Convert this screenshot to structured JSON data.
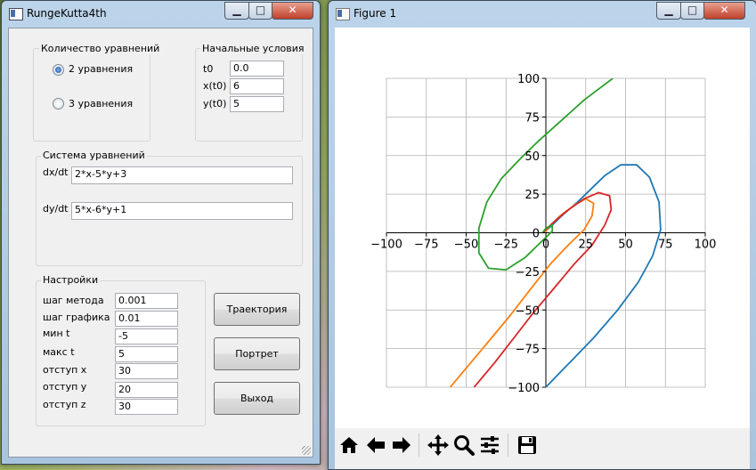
{
  "left_window": {
    "title": "RungeKutta4th",
    "eq_count_group": {
      "label": "Количество уравнений",
      "options": [
        "2 уравнения",
        "3 уравнения"
      ],
      "selected": 0
    },
    "initial_group": {
      "label": "Начальные условия",
      "fields": [
        {
          "label": "t0",
          "value": "0.0"
        },
        {
          "label": "x(t0)",
          "value": "6"
        },
        {
          "label": "y(t0)",
          "value": "5"
        }
      ]
    },
    "system_group": {
      "label": "Система уравнений",
      "equations": [
        {
          "label": "dx/dt",
          "value": "2*x-5*y+3"
        },
        {
          "label": "dy/dt",
          "value": "5*x-6*y+1"
        }
      ]
    },
    "settings_group": {
      "label": "Настройки",
      "fields": [
        {
          "label": "шаг метода",
          "value": "0.001"
        },
        {
          "label": "шаг графика",
          "value": "0.01"
        },
        {
          "label": "мин t",
          "value": "-5"
        },
        {
          "label": "макс t",
          "value": "5"
        },
        {
          "label": "отступ x",
          "value": "30"
        },
        {
          "label": "отступ y",
          "value": "20"
        },
        {
          "label": "отступ z",
          "value": "30"
        }
      ]
    },
    "buttons": {
      "trajectory": "Траектория",
      "portrait": "Портрет",
      "exit": "Выход"
    }
  },
  "right_window": {
    "title": "Figure 1",
    "toolbar_icons": [
      "home-icon",
      "back-arrow-icon",
      "forward-arrow-icon",
      "pan-icon",
      "zoom-icon",
      "subplots-icon",
      "save-icon"
    ]
  },
  "chart_data": {
    "type": "line",
    "title": "",
    "xlabel": "",
    "ylabel": "",
    "xlim": [
      -100,
      100
    ],
    "ylim": [
      -100,
      100
    ],
    "x_ticks": [
      -100,
      -75,
      -50,
      -25,
      0,
      25,
      50,
      75,
      100
    ],
    "y_ticks": [
      -100,
      -75,
      -50,
      -25,
      0,
      25,
      50,
      75,
      100
    ],
    "x_tick_labels": [
      "−100",
      "−75",
      "−50",
      "−25",
      "0",
      "25",
      "50",
      "75",
      "100"
    ],
    "y_tick_labels": [
      "−100",
      "−75",
      "−50",
      "−25",
      "0",
      "25",
      "50",
      "75",
      "100"
    ],
    "grid": true,
    "axes_through_origin": true,
    "series": [
      {
        "color": "#1f77b4",
        "points": [
          [
            0,
            -100
          ],
          [
            15,
            -84
          ],
          [
            30,
            -68
          ],
          [
            45,
            -50
          ],
          [
            58,
            -32
          ],
          [
            67,
            -15
          ],
          [
            72,
            2
          ],
          [
            71,
            20
          ],
          [
            65,
            36
          ],
          [
            57,
            44
          ],
          [
            47,
            44
          ],
          [
            37,
            37
          ],
          [
            29,
            29
          ],
          [
            20,
            20
          ],
          [
            10,
            11
          ],
          [
            3,
            4
          ],
          [
            -2,
            0
          ]
        ]
      },
      {
        "color": "#ff7f0e",
        "points": [
          [
            -60,
            -100
          ],
          [
            -47,
            -84
          ],
          [
            -34,
            -68
          ],
          [
            -22,
            -53
          ],
          [
            -10,
            -37
          ],
          [
            3,
            -20
          ],
          [
            14,
            -8
          ],
          [
            24,
            2
          ],
          [
            29,
            11
          ],
          [
            30,
            19
          ],
          [
            25,
            22
          ],
          [
            18,
            18
          ],
          [
            9,
            11
          ],
          [
            3,
            5
          ],
          [
            -1,
            0
          ]
        ]
      },
      {
        "color": "#d62728",
        "points": [
          [
            -45,
            -100
          ],
          [
            -32,
            -84
          ],
          [
            -20,
            -68
          ],
          [
            -8,
            -52
          ],
          [
            5,
            -36
          ],
          [
            18,
            -20
          ],
          [
            29,
            -8
          ],
          [
            37,
            5
          ],
          [
            41,
            15
          ],
          [
            40,
            24
          ],
          [
            33,
            26
          ],
          [
            24,
            22
          ],
          [
            13,
            14
          ],
          [
            5,
            7
          ],
          [
            0,
            2
          ],
          [
            -2,
            0
          ]
        ]
      },
      {
        "color": "#2ca02c",
        "points": [
          [
            42,
            100
          ],
          [
            24,
            86
          ],
          [
            9,
            72
          ],
          [
            -5,
            59
          ],
          [
            -16,
            48
          ],
          [
            -28,
            35
          ],
          [
            -37,
            20
          ],
          [
            -42,
            3
          ],
          [
            -42,
            -13
          ],
          [
            -36,
            -23
          ],
          [
            -25,
            -24
          ],
          [
            -13,
            -16
          ],
          [
            -5,
            -8
          ],
          [
            0,
            -3
          ],
          [
            4,
            1
          ],
          [
            4,
            5
          ],
          [
            0,
            3
          ],
          [
            -2,
            0
          ]
        ]
      }
    ]
  }
}
